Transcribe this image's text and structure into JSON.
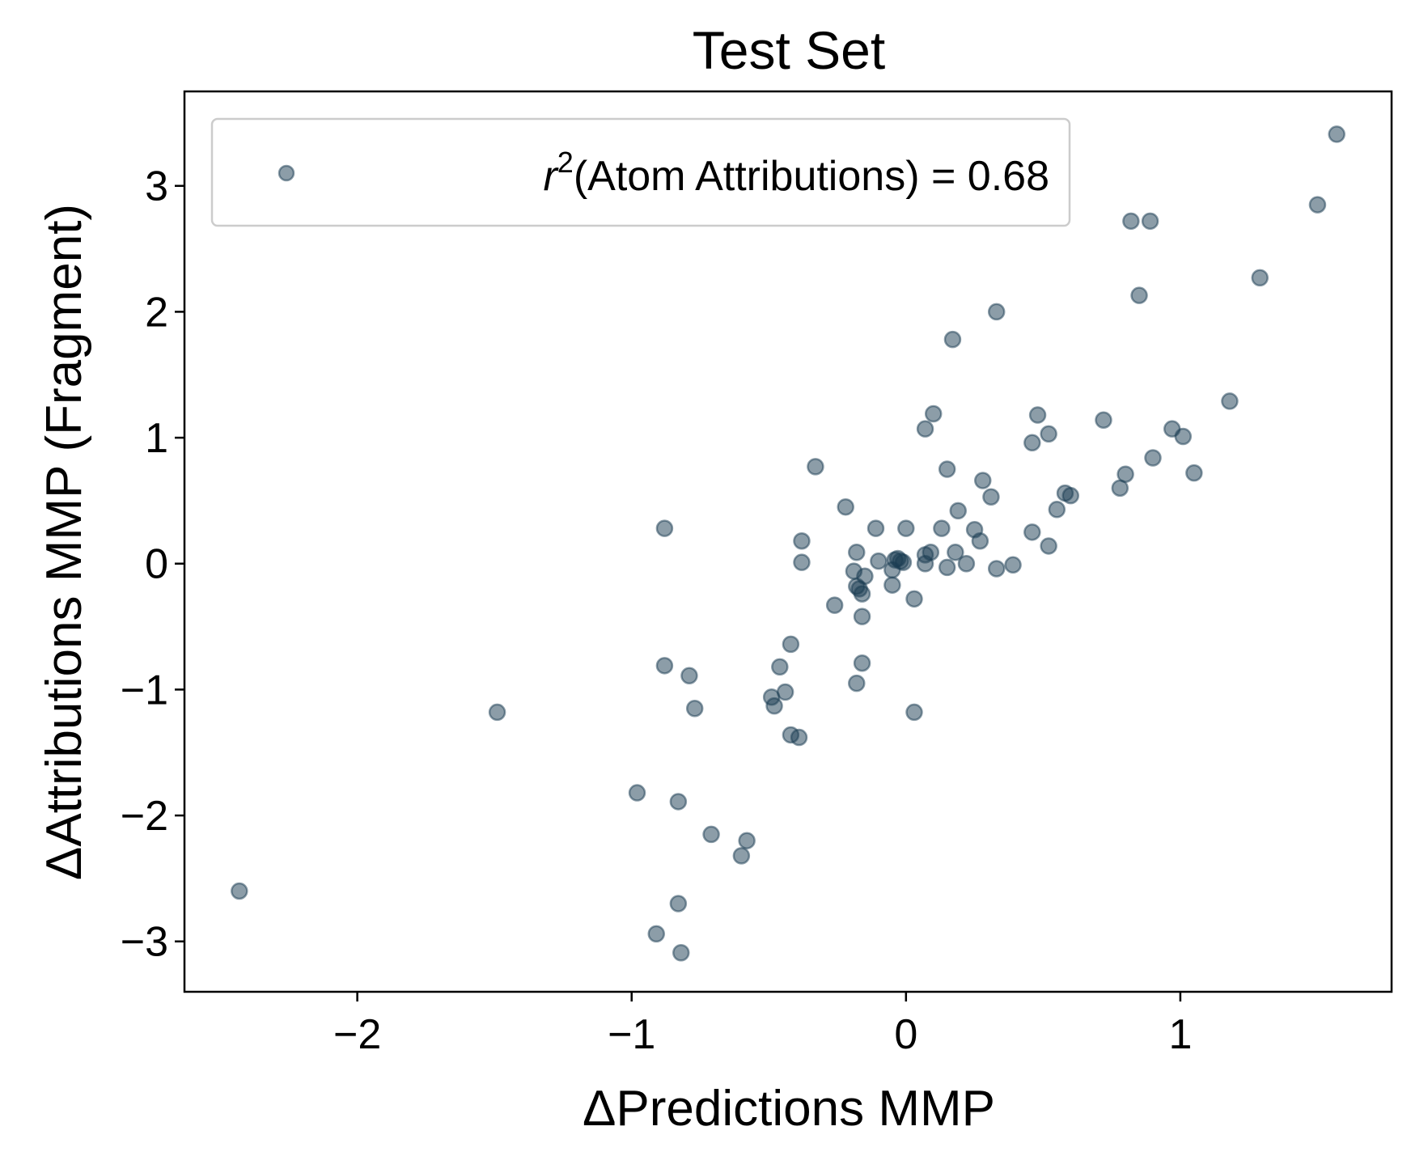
{
  "chart_data": {
    "type": "scatter",
    "title": "Test Set",
    "xlabel": "ΔPredictions MMP",
    "ylabel": "ΔAttributions MMP (Fragment)",
    "xlim": [
      -2.63,
      1.77
    ],
    "ylim": [
      -3.4,
      3.75
    ],
    "x_ticks": [
      -2,
      -1,
      0,
      1
    ],
    "x_tick_labels": [
      "−2",
      "−1",
      "0",
      "1"
    ],
    "y_ticks": [
      -3,
      -2,
      -1,
      0,
      1,
      2,
      3
    ],
    "y_tick_labels": [
      "−3",
      "−2",
      "−1",
      "0",
      "1",
      "2",
      "3"
    ],
    "grid": false,
    "legend_position": "top-left",
    "series": [
      {
        "name": "r²(Atom Attributions) = 0.68",
        "legend": {
          "r": "r",
          "sup": "2",
          "rest": "(Atom Attributions) = 0.68"
        },
        "color": "#1a3c52",
        "points": [
          [
            -2.43,
            -2.6
          ],
          [
            -1.49,
            -1.18
          ],
          [
            -0.98,
            -1.82
          ],
          [
            -0.88,
            -0.81
          ],
          [
            -0.88,
            0.28
          ],
          [
            -0.91,
            -2.94
          ],
          [
            -0.83,
            -1.89
          ],
          [
            -0.83,
            -2.7
          ],
          [
            -0.82,
            -3.09
          ],
          [
            -0.79,
            -0.89
          ],
          [
            -0.77,
            -1.15
          ],
          [
            -0.71,
            -2.15
          ],
          [
            -0.6,
            -2.32
          ],
          [
            -0.58,
            -2.2
          ],
          [
            -0.49,
            -1.06
          ],
          [
            -0.48,
            -1.13
          ],
          [
            -0.46,
            -0.82
          ],
          [
            -0.44,
            -1.02
          ],
          [
            -0.42,
            -1.36
          ],
          [
            -0.42,
            -0.64
          ],
          [
            -0.39,
            -1.38
          ],
          [
            -0.38,
            0.18
          ],
          [
            -0.38,
            0.01
          ],
          [
            -0.33,
            0.77
          ],
          [
            -0.26,
            -0.33
          ],
          [
            -0.22,
            0.45
          ],
          [
            -0.19,
            -0.06
          ],
          [
            -0.18,
            0.09
          ],
          [
            -0.18,
            -0.95
          ],
          [
            -0.18,
            -0.18
          ],
          [
            -0.17,
            -0.2
          ],
          [
            -0.16,
            -0.24
          ],
          [
            -0.16,
            -0.42
          ],
          [
            -0.16,
            -0.79
          ],
          [
            -0.15,
            -0.1
          ],
          [
            -0.11,
            0.28
          ],
          [
            -0.1,
            0.02
          ],
          [
            -0.05,
            -0.17
          ],
          [
            -0.05,
            -0.05
          ],
          [
            -0.04,
            0.03
          ],
          [
            -0.03,
            0.04
          ],
          [
            -0.02,
            0.02
          ],
          [
            -0.01,
            0.01
          ],
          [
            0.0,
            0.28
          ],
          [
            0.03,
            -0.28
          ],
          [
            0.03,
            -1.18
          ],
          [
            0.07,
            0.0
          ],
          [
            0.07,
            1.07
          ],
          [
            0.07,
            0.07
          ],
          [
            0.09,
            0.09
          ],
          [
            0.1,
            1.19
          ],
          [
            0.13,
            0.28
          ],
          [
            0.15,
            0.75
          ],
          [
            0.15,
            -0.03
          ],
          [
            0.17,
            1.78
          ],
          [
            0.18,
            0.09
          ],
          [
            0.19,
            0.42
          ],
          [
            0.22,
            0.0
          ],
          [
            0.25,
            0.27
          ],
          [
            0.27,
            0.18
          ],
          [
            0.28,
            0.66
          ],
          [
            0.31,
            0.53
          ],
          [
            0.33,
            2.0
          ],
          [
            0.33,
            -0.04
          ],
          [
            0.39,
            -0.01
          ],
          [
            0.46,
            0.25
          ],
          [
            0.46,
            0.96
          ],
          [
            0.48,
            1.18
          ],
          [
            0.52,
            1.03
          ],
          [
            0.52,
            0.14
          ],
          [
            0.55,
            0.43
          ],
          [
            0.58,
            0.56
          ],
          [
            0.6,
            0.54
          ],
          [
            0.72,
            1.14
          ],
          [
            0.78,
            0.6
          ],
          [
            0.8,
            0.71
          ],
          [
            0.82,
            2.72
          ],
          [
            0.85,
            2.13
          ],
          [
            0.89,
            2.72
          ],
          [
            0.9,
            0.84
          ],
          [
            0.97,
            1.07
          ],
          [
            1.01,
            1.01
          ],
          [
            1.05,
            0.72
          ],
          [
            1.18,
            1.29
          ],
          [
            1.29,
            2.27
          ],
          [
            1.5,
            2.85
          ],
          [
            1.57,
            3.41
          ]
        ]
      }
    ]
  }
}
